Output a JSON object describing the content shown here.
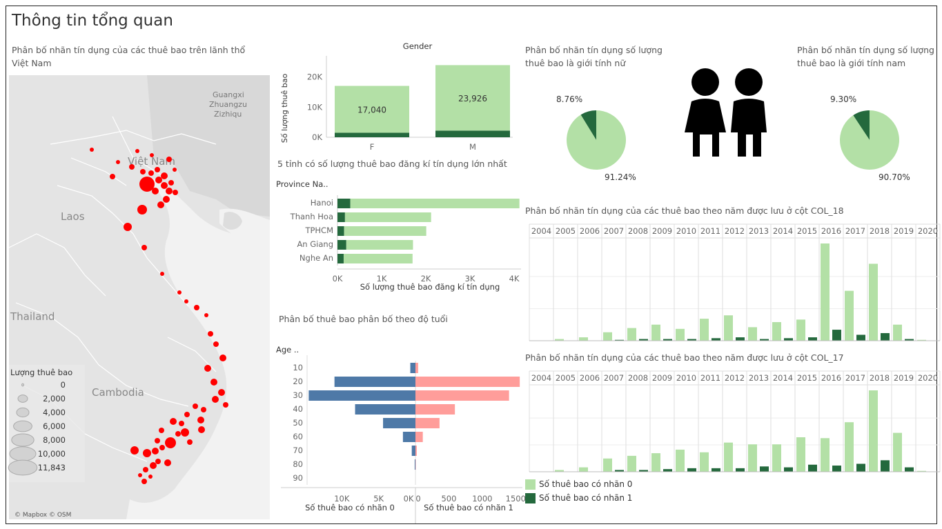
{
  "dashboard": {
    "title": "Thông tin tổng quan"
  },
  "map": {
    "caption": "Phân bố nhãn tín dụng của các thuê bao trên lãnh thổ Việt Nam",
    "place_labels": {
      "guangxi": "Guangxi",
      "zhuangzu": "Zhuangzu",
      "zizhiqu": "Zizhiqu",
      "vietnam": "Việt Nam",
      "laos": "Laos",
      "thailand": "Thailand",
      "cambodia": "Cambodia"
    },
    "legend_title": "Lượng thuê bao",
    "legend_items": [
      "0",
      "2,000",
      "4,000",
      "6,000",
      "8,000",
      "10,000",
      "11,843"
    ],
    "attribution": "© Mapbox © OSM",
    "marker_color": "#ff0000"
  },
  "colors": {
    "label0": "#b3e0a6",
    "label1": "#24693d",
    "female_bar": "#4e79a7",
    "male_bar": "#ff9d9a"
  },
  "chart_data": [
    {
      "id": "gender",
      "type": "bar",
      "title": "Gender",
      "ylabel": "Số lượng thuê bao",
      "categories": [
        "F",
        "M"
      ],
      "series": [
        {
          "name": "Số thuê bao có nhãn 0",
          "values": [
            15540,
            21720
          ]
        },
        {
          "name": "Số thuê bao có nhãn 1",
          "values": [
            1500,
            2206
          ]
        }
      ],
      "totals": [
        17040,
        23926
      ],
      "total_labels": [
        "17,040",
        "23,926"
      ],
      "yticks": [
        "0K",
        "10K",
        "20K"
      ],
      "ylim": [
        0,
        27000
      ]
    },
    {
      "id": "top5",
      "type": "bar",
      "title": "5 tỉnh có số lượng thuê bao đăng kí tín dụng lớn nhất",
      "header": "Province Na..",
      "xlabel": "Số lượng thuê bao đăng kí tín dụng",
      "categories": [
        "Hanoi",
        "Thanh Hoa",
        "TPHCM",
        "An Giang",
        "Nghe An"
      ],
      "series": [
        {
          "name": "Số thuê bao có nhãn 1",
          "values": [
            290,
            170,
            150,
            200,
            140
          ]
        },
        {
          "name": "Số thuê bao có nhãn 0",
          "values": [
            3830,
            1950,
            1860,
            1510,
            1560
          ]
        }
      ],
      "xticks": [
        "0K",
        "1K",
        "2K",
        "3K",
        "4K"
      ],
      "xlim": [
        0,
        4000
      ]
    },
    {
      "id": "age",
      "type": "bar",
      "title": "Phân bố thuê bao phân bố theo độ tuổi",
      "header": "Age ..",
      "categories": [
        "10",
        "20",
        "30",
        "40",
        "50",
        "60",
        "70",
        "80",
        "90"
      ],
      "left_label": "Số thuê bao có nhãn 0",
      "right_label": "Số thuê bao có nhãn 1",
      "left_values": [
        700,
        11000,
        14500,
        8200,
        4400,
        1700,
        500,
        100,
        0
      ],
      "right_values": [
        40,
        1560,
        1400,
        590,
        360,
        110,
        20,
        5,
        0
      ],
      "left_ticks": [
        "10K",
        "5K",
        "0K"
      ],
      "right_ticks": [
        "0",
        "500",
        "1000",
        "1500"
      ]
    },
    {
      "id": "female-pie",
      "type": "pie",
      "title": "Phân bố nhãn tín dụng số lượng thuê bao là giới tính nữ",
      "values": [
        8.76,
        91.24
      ],
      "labels": [
        "8.76%",
        "91.24%"
      ]
    },
    {
      "id": "male-pie",
      "type": "pie",
      "title": "Phân bố nhãn tín dụng số lượng thuê bao là giới tính nam",
      "values": [
        9.3,
        90.7
      ],
      "labels": [
        "9.30%",
        "90.70%"
      ]
    },
    {
      "id": "col18",
      "type": "bar",
      "title": "Phân bố nhãn tín dụng của các thuê bao theo năm được lưu ở cột COL_18",
      "categories": [
        "2004",
        "2005",
        "2006",
        "2007",
        "2008",
        "2009",
        "2010",
        "2011",
        "2012",
        "2013",
        "2014",
        "2015",
        "2016",
        "2017",
        "2018",
        "2019",
        "2020"
      ],
      "series": [
        {
          "name": "Số thuê bao có nhãn 0",
          "values": [
            0,
            2,
            4,
            10,
            15,
            19,
            14,
            26,
            30,
            16,
            22,
            25,
            115,
            59,
            91,
            19,
            1
          ]
        },
        {
          "name": "Số thuê bao có nhãn 1",
          "values": [
            0,
            0,
            0,
            1,
            2,
            2,
            2,
            3,
            4,
            2,
            3,
            4,
            13,
            7,
            9,
            2,
            0
          ]
        }
      ],
      "ylim": [
        0,
        115
      ]
    },
    {
      "id": "col17",
      "type": "bar",
      "title": "Phân bố nhãn tín dụng của các thuê bao theo năm được lưu ở cột COL_17",
      "categories": [
        "2004",
        "2005",
        "2006",
        "2007",
        "2008",
        "2009",
        "2010",
        "2011",
        "2012",
        "2013",
        "2014",
        "2015",
        "2016",
        "2017",
        "2018",
        "2019",
        "2020"
      ],
      "series": [
        {
          "name": "Số thuê bao có nhãn 0",
          "values": [
            0,
            2,
            5,
            15,
            18,
            21,
            25,
            22,
            33,
            31,
            31,
            39,
            38,
            56,
            92,
            44,
            1
          ]
        },
        {
          "name": "Số thuê bao có nhãn 1",
          "values": [
            0,
            0,
            0,
            2,
            2,
            3,
            4,
            4,
            4,
            6,
            5,
            8,
            7,
            9,
            13,
            5,
            0
          ]
        }
      ],
      "ylim": [
        0,
        92
      ]
    }
  ],
  "legend": {
    "items": [
      "Số thuê bao có nhãn 0",
      "Số thuê bao có nhãn 1"
    ]
  }
}
